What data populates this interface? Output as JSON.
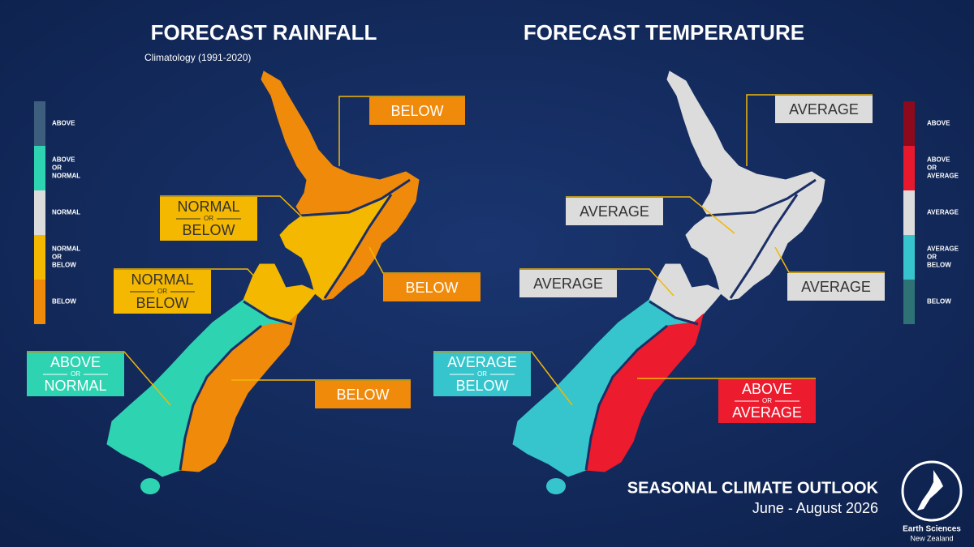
{
  "panels": [
    {
      "title": "FORECAST RAINFALL",
      "subtitle": "Climatology (1991-2020)",
      "legend": [
        {
          "lines": [
            "ABOVE"
          ],
          "color": "#3e5e7e"
        },
        {
          "lines": [
            "ABOVE",
            "OR",
            "NORMAL"
          ],
          "color": "#2ed3b2"
        },
        {
          "lines": [
            "NORMAL"
          ],
          "color": "#dcdcdc"
        },
        {
          "lines": [
            "NORMAL",
            "OR",
            "BELOW"
          ],
          "color": "#f4b800"
        },
        {
          "lines": [
            "BELOW"
          ],
          "color": "#f08a0b"
        }
      ],
      "regions": [
        {
          "lines": [
            "BELOW"
          ],
          "color": "#f08a0b"
        },
        {
          "lines": [
            "NORMAL",
            "OR",
            "BELOW"
          ],
          "color": "#f4b800"
        },
        {
          "lines": [
            "BELOW"
          ],
          "color": "#f08a0b"
        },
        {
          "lines": [
            "NORMAL",
            "OR",
            "BELOW"
          ],
          "color": "#f4b800"
        },
        {
          "lines": [
            "ABOVE",
            "OR",
            "NORMAL"
          ],
          "color": "#2ed3b2"
        },
        {
          "lines": [
            "BELOW"
          ],
          "color": "#f08a0b"
        }
      ]
    },
    {
      "title": "FORECAST TEMPERATURE",
      "legend": [
        {
          "lines": [
            "ABOVE"
          ],
          "color": "#8c0a1c"
        },
        {
          "lines": [
            "ABOVE",
            "OR",
            "AVERAGE"
          ],
          "color": "#e8192c"
        },
        {
          "lines": [
            "AVERAGE"
          ],
          "color": "#dcdcdc"
        },
        {
          "lines": [
            "AVERAGE",
            "OR",
            "BELOW"
          ],
          "color": "#36c5cd"
        },
        {
          "lines": [
            "BELOW"
          ],
          "color": "#2e7275"
        }
      ],
      "regions": [
        {
          "lines": [
            "AVERAGE"
          ],
          "color": "#dcdcdc"
        },
        {
          "lines": [
            "AVERAGE"
          ],
          "color": "#dcdcdc"
        },
        {
          "lines": [
            "AVERAGE"
          ],
          "color": "#dcdcdc"
        },
        {
          "lines": [
            "AVERAGE"
          ],
          "color": "#dcdcdc"
        },
        {
          "lines": [
            "AVERAGE",
            "OR",
            "BELOW"
          ],
          "color": "#36c5cd"
        },
        {
          "lines": [
            "ABOVE",
            "OR",
            "AVERAGE"
          ],
          "color": "#ec1c2e"
        }
      ]
    }
  ],
  "footer": {
    "title": "SEASONAL CLIMATE OUTLOOK",
    "period": "June - August 2026"
  },
  "logo": {
    "lines": [
      "Earth Sciences",
      "New Zealand"
    ]
  }
}
